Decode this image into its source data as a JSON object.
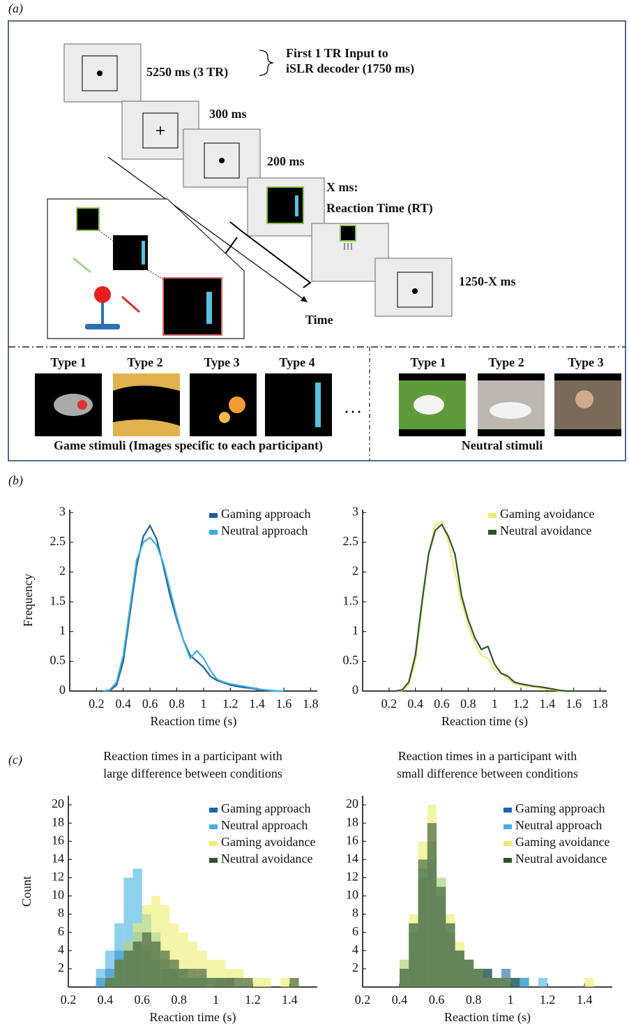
{
  "diagram": {
    "panel_labels": [
      "(a)",
      "(b)",
      "(c)"
    ],
    "decoder_note": [
      "First 1 TR Input to",
      "iSLR decoder (1750 ms)"
    ],
    "durations": [
      "5250 ms (3 TR)",
      "300 ms",
      "200 ms",
      "X ms:",
      "Reaction Time (RT)",
      "1250-X ms"
    ],
    "time_label": "Time",
    "game_types": [
      "Type 1",
      "Type 2",
      "Type 3",
      "Type 4"
    ],
    "game_caption": "Game stimuli (Images specific to each participant)",
    "neutral_types": [
      "Type 1",
      "Type 2",
      "Type 3"
    ],
    "neutral_caption": "Neutral stimuli"
  },
  "chart_data": [
    {
      "type": "line",
      "ylabel": "Frequency",
      "xlabel": "Reaction time (s)",
      "legend": "upper right",
      "x": [
        0.25,
        0.3,
        0.35,
        0.4,
        0.45,
        0.5,
        0.55,
        0.6,
        0.65,
        0.7,
        0.75,
        0.8,
        0.85,
        0.9,
        0.95,
        1.0,
        1.05,
        1.1,
        1.15,
        1.2,
        1.25,
        1.3,
        1.35,
        1.4,
        1.45,
        1.5,
        1.55,
        1.6
      ],
      "series": [
        {
          "name": "Gaming approach",
          "color": "#1d5d9b",
          "values": [
            0,
            0.01,
            0.1,
            0.5,
            1.3,
            2.1,
            2.6,
            2.78,
            2.55,
            2.1,
            1.6,
            1.2,
            0.85,
            0.6,
            0.5,
            0.4,
            0.25,
            0.18,
            0.14,
            0.1,
            0.08,
            0.06,
            0.05,
            0.03,
            0.02,
            0.01,
            0,
            0
          ]
        },
        {
          "name": "Neutral approach",
          "color": "#3aaee0",
          "values": [
            0,
            0.02,
            0.15,
            0.6,
            1.4,
            2.2,
            2.5,
            2.58,
            2.45,
            2.15,
            1.7,
            1.25,
            0.85,
            0.55,
            0.68,
            0.55,
            0.35,
            0.2,
            0.15,
            0.12,
            0.1,
            0.08,
            0.06,
            0.04,
            0.02,
            0.01,
            0,
            0
          ]
        }
      ],
      "xlim": [
        0,
        1.85
      ],
      "xticks": [
        0.2,
        0.4,
        0.6,
        0.8,
        1,
        1.2,
        1.4,
        1.6,
        1.8
      ],
      "ylim": [
        0,
        3.05
      ],
      "yticks": [
        0,
        0.5,
        1,
        1.5,
        2,
        2.5,
        3
      ]
    },
    {
      "type": "line",
      "xlabel": "Reaction time (s)",
      "legend": "upper right",
      "x": [
        0.25,
        0.3,
        0.35,
        0.4,
        0.45,
        0.5,
        0.55,
        0.6,
        0.65,
        0.7,
        0.75,
        0.8,
        0.85,
        0.9,
        0.95,
        1.0,
        1.05,
        1.1,
        1.15,
        1.2,
        1.25,
        1.3,
        1.35,
        1.4,
        1.45,
        1.5,
        1.55,
        1.6
      ],
      "series": [
        {
          "name": "Gaming avoidance",
          "color": "#eceb70",
          "values": [
            0,
            0.01,
            0.1,
            0.5,
            1.4,
            2.3,
            2.8,
            2.85,
            2.5,
            2.0,
            1.5,
            1.1,
            0.8,
            0.6,
            0.55,
            0.35,
            0.3,
            0.2,
            0.12,
            0.1,
            0.08,
            0.07,
            0.05,
            0.03,
            0.02,
            0,
            0,
            0
          ]
        },
        {
          "name": "Neutral avoidance",
          "color": "#2e5230",
          "values": [
            0,
            0.02,
            0.15,
            0.6,
            1.5,
            2.3,
            2.7,
            2.8,
            2.6,
            2.3,
            1.6,
            1.2,
            0.9,
            0.7,
            0.75,
            0.45,
            0.3,
            0.25,
            0.15,
            0.12,
            0.1,
            0.08,
            0.07,
            0.05,
            0.03,
            0.01,
            0,
            0
          ]
        }
      ],
      "xlim": [
        0,
        1.85
      ],
      "xticks": [
        0.2,
        0.4,
        0.6,
        0.8,
        1,
        1.2,
        1.4,
        1.6,
        1.8
      ],
      "ylim": [
        0,
        3.05
      ],
      "yticks": [
        0,
        0.5,
        1,
        1.5,
        2,
        2.5,
        3
      ]
    },
    {
      "type": "histogram",
      "title": [
        "Reaction times in a participant with",
        "large difference between conditions"
      ],
      "ylabel": "Count",
      "xlabel": "Reaction time (s)",
      "legend": "upper right",
      "bins": [
        0.3,
        0.35,
        0.4,
        0.45,
        0.5,
        0.55,
        0.6,
        0.65,
        0.7,
        0.75,
        0.8,
        0.85,
        0.9,
        0.95,
        1.0,
        1.05,
        1.1,
        1.15,
        1.2,
        1.25,
        1.3,
        1.35,
        1.4,
        1.45,
        1.5
      ],
      "series": [
        {
          "name": "Gaming approach",
          "color": "#1d64a8",
          "values": [
            0,
            1,
            2,
            4,
            5,
            6,
            4,
            3,
            2,
            2,
            1,
            1,
            1,
            0,
            1,
            1,
            0,
            0,
            0,
            0,
            0,
            0,
            0,
            0
          ]
        },
        {
          "name": "Neutral approach",
          "color": "#45b0df",
          "values": [
            0,
            2,
            4,
            7,
            12,
            13,
            8,
            6,
            3,
            2,
            2,
            1,
            1,
            1,
            0,
            1,
            0,
            0,
            0,
            0,
            0,
            0,
            0,
            0
          ]
        },
        {
          "name": "Gaming avoidance",
          "color": "#ecec6c",
          "values": [
            0,
            0,
            1,
            3,
            5,
            7,
            9,
            10,
            9,
            7,
            6,
            5,
            4,
            3,
            3,
            2,
            2,
            1,
            1,
            1,
            0,
            1,
            1,
            0
          ]
        },
        {
          "name": "Neutral avoidance",
          "color": "#2e5230",
          "values": [
            0,
            0,
            1,
            3,
            4,
            5,
            6,
            5,
            4,
            3,
            2,
            2,
            2,
            1,
            1,
            1,
            1,
            1,
            0,
            0,
            0,
            0,
            1,
            0
          ]
        }
      ],
      "xlim": [
        0.2,
        1.55
      ],
      "xticks": [
        0.2,
        0.4,
        0.6,
        0.8,
        1,
        1.2,
        1.4
      ],
      "ylim": [
        0,
        21
      ],
      "yticks": [
        2,
        4,
        6,
        8,
        10,
        12,
        14,
        16,
        18,
        20
      ]
    },
    {
      "type": "histogram",
      "title": [
        "Reaction times in a participant with",
        "small difference between conditions"
      ],
      "xlabel": "Reaction time (s)",
      "legend": "upper right",
      "bins": [
        0.3,
        0.35,
        0.4,
        0.45,
        0.5,
        0.55,
        0.6,
        0.65,
        0.7,
        0.75,
        0.8,
        0.85,
        0.9,
        0.95,
        1.0,
        1.05,
        1.1,
        1.15,
        1.2,
        1.25,
        1.3,
        1.35,
        1.4,
        1.45,
        1.5
      ],
      "series": [
        {
          "name": "Gaming approach",
          "color": "#1d64a8",
          "values": [
            0,
            0,
            2,
            6,
            12,
            14,
            10,
            6,
            4,
            3,
            2,
            2,
            1,
            2,
            1,
            1,
            0,
            0,
            0,
            0,
            0,
            0,
            0,
            0
          ]
        },
        {
          "name": "Neutral approach",
          "color": "#45b0df",
          "values": [
            0,
            0,
            3,
            7,
            13,
            16,
            12,
            7,
            4,
            3,
            2,
            1,
            1,
            1,
            1,
            1,
            0,
            1,
            0,
            0,
            0,
            0,
            0,
            0
          ]
        },
        {
          "name": "Gaming avoidance",
          "color": "#ecec6c",
          "values": [
            0,
            0,
            3,
            8,
            16,
            20,
            12,
            8,
            5,
            3,
            2,
            1,
            1,
            1,
            0,
            0,
            0,
            0,
            0,
            0,
            0,
            0,
            1,
            0
          ]
        },
        {
          "name": "Neutral avoidance",
          "color": "#2e5230",
          "values": [
            0,
            0,
            2,
            7,
            14,
            18,
            11,
            7,
            4,
            3,
            2,
            2,
            1,
            1,
            1,
            0,
            0,
            0,
            0,
            0,
            0,
            0,
            0,
            0
          ]
        }
      ],
      "xlim": [
        0.2,
        1.55
      ],
      "xticks": [
        0.2,
        0.4,
        0.6,
        0.8,
        1,
        1.2,
        1.4
      ],
      "ylim": [
        0,
        21
      ],
      "yticks": [
        2,
        4,
        6,
        8,
        10,
        12,
        14,
        16,
        18,
        20
      ]
    }
  ]
}
